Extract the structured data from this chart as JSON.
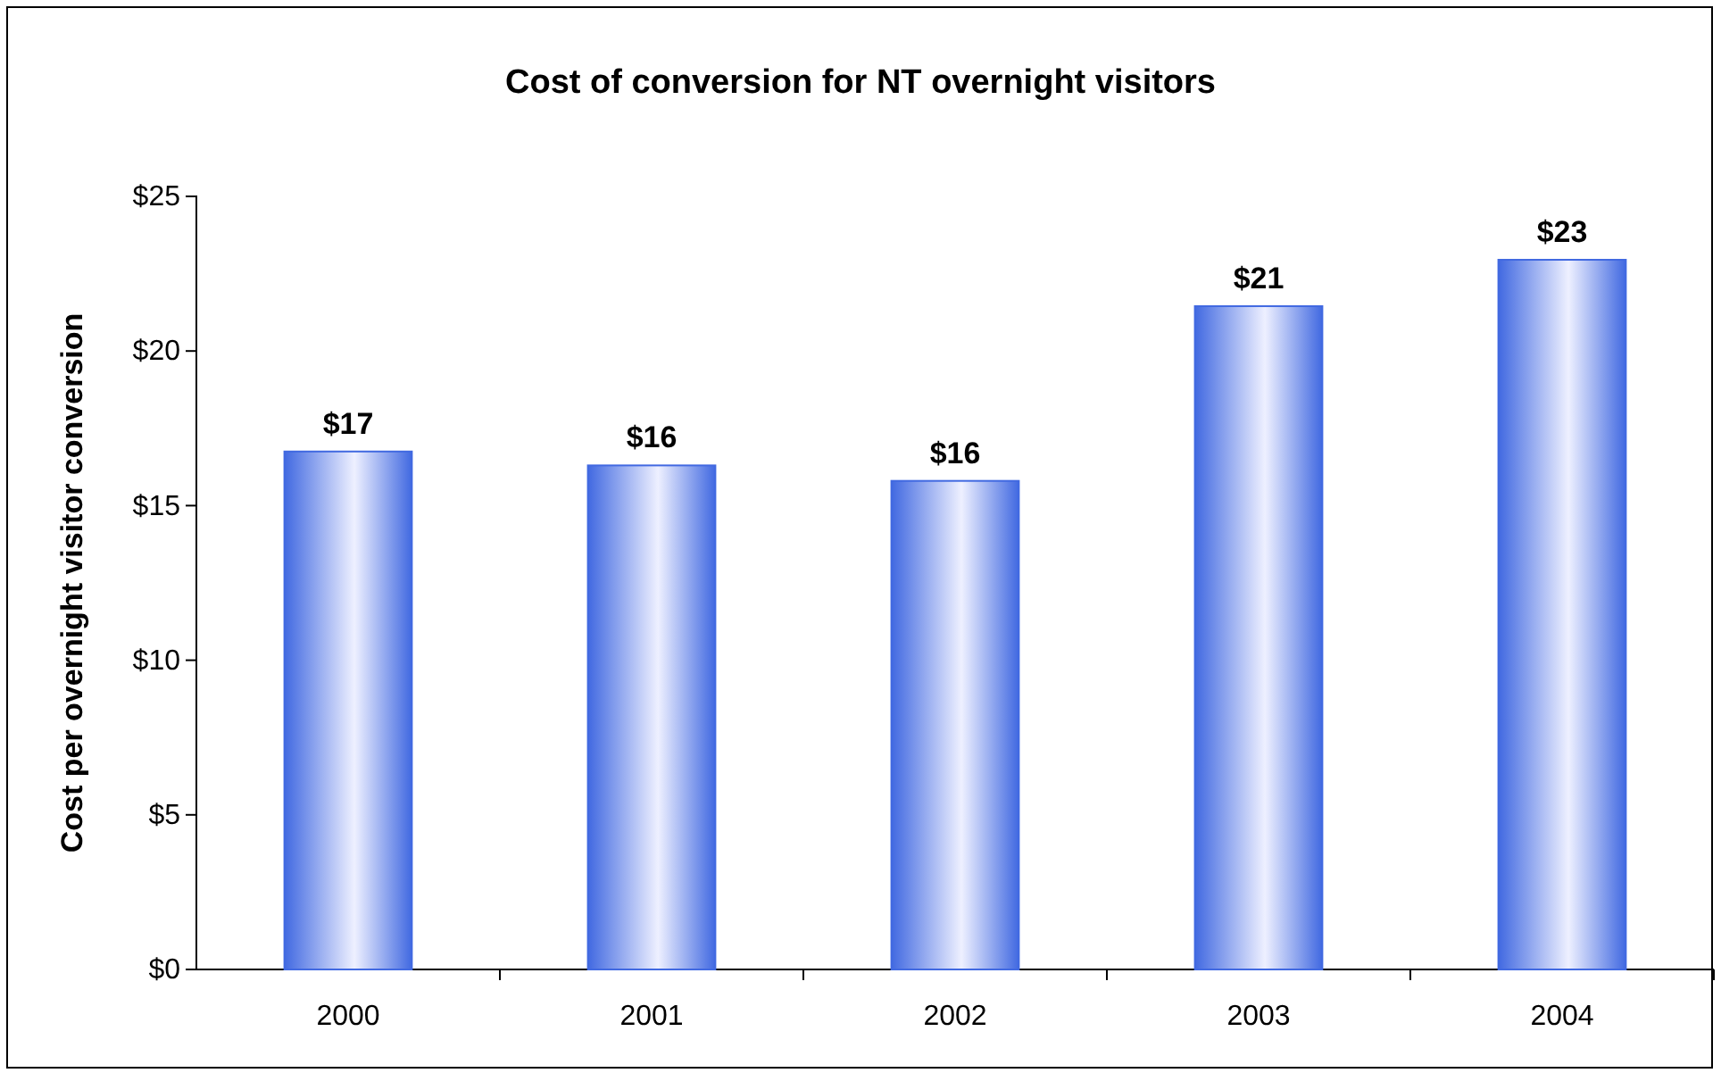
{
  "chart_data": {
    "type": "bar",
    "title": "Cost of conversion for NT overnight visitors",
    "ylabel": "Cost per overnight visitor conversion",
    "categories": [
      "2000",
      "2001",
      "2002",
      "2003",
      "2004"
    ],
    "series": [
      {
        "color": "#4169e1",
        "values": [
          16.75,
          16.3,
          15.8,
          21.45,
          22.95
        ],
        "value_labels": [
          "$17",
          "$16",
          "$16",
          "$21",
          "$23"
        ]
      }
    ],
    "ylim": [
      0,
      25
    ],
    "yticks": [
      {
        "value": 0,
        "label": "$0"
      },
      {
        "value": 5,
        "label": "$5"
      },
      {
        "value": 10,
        "label": "$10"
      },
      {
        "value": 15,
        "label": "$15"
      },
      {
        "value": 20,
        "label": "$20"
      },
      {
        "value": 25,
        "label": "$25"
      }
    ],
    "grid": false
  }
}
